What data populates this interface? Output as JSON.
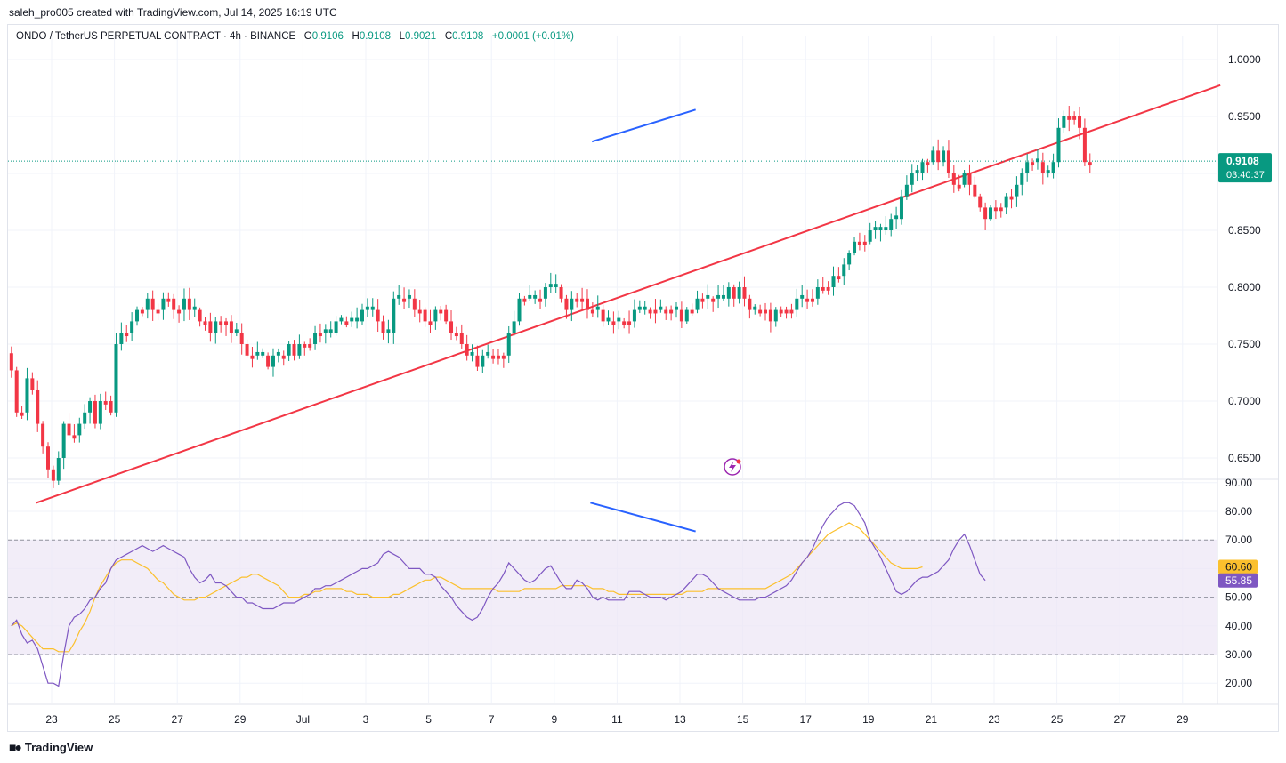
{
  "header": {
    "credit": "saleh_pro005 created with TradingView.com, Jul 14, 2025 16:19 UTC"
  },
  "legend": {
    "symbol": "ONDO / TetherUS PERPETUAL CONTRACT · 4h · BINANCE",
    "o_label": "O",
    "o_value": "0.9106",
    "h_label": "H",
    "h_value": "0.9108",
    "l_label": "L",
    "l_value": "0.9021",
    "c_label": "C",
    "c_value": "0.9108",
    "change": "+0.0001 (+0.01%)"
  },
  "price_tag": {
    "value": "0.9108",
    "countdown": "03:40:37"
  },
  "rsi_tags": {
    "ma": "60.60",
    "rsi": "55.85"
  },
  "branding": {
    "logo_text": "TradingView"
  },
  "colors": {
    "up": "#089981",
    "down": "#f23645",
    "trendline": "#f23645",
    "divergence": "#2962ff",
    "rsi": "#7e57c2",
    "rsi_ma": "#fbc02d",
    "rsi_band": "#ede7f6",
    "ma_tag": "#fbc02d",
    "rsi_tag": "#7e57c2"
  },
  "chart_data": [
    {
      "type": "candlestick",
      "y_axis": {
        "min": 0.62,
        "max": 1.025,
        "ticks": [
          "1.0000",
          "0.9500",
          "0.8500",
          "0.8000",
          "0.7500",
          "0.7000",
          "0.6500"
        ]
      },
      "x_axis": {
        "labels": [
          "23",
          "25",
          "27",
          "29",
          "Jul",
          "3",
          "5",
          "7",
          "9",
          "11",
          "13",
          "15",
          "17",
          "19",
          "21",
          "23",
          "25",
          "27",
          "29"
        ],
        "label_days": [
          23,
          25,
          27,
          29,
          31,
          33,
          35,
          37,
          39,
          41,
          43,
          45,
          47,
          49,
          51,
          53,
          55,
          57,
          59
        ]
      },
      "day_start": 21.72,
      "candles_per_day": 6,
      "closes": [
        0.727,
        0.69,
        0.69,
        0.72,
        0.71,
        0.68,
        0.66,
        0.64,
        0.63,
        0.65,
        0.68,
        0.67,
        0.67,
        0.68,
        0.69,
        0.7,
        0.68,
        0.7,
        0.7,
        0.69,
        0.75,
        0.76,
        0.76,
        0.77,
        0.78,
        0.78,
        0.79,
        0.78,
        0.78,
        0.79,
        0.79,
        0.78,
        0.78,
        0.79,
        0.78,
        0.78,
        0.77,
        0.77,
        0.76,
        0.77,
        0.77,
        0.77,
        0.76,
        0.76,
        0.75,
        0.74,
        0.74,
        0.74,
        0.74,
        0.73,
        0.74,
        0.74,
        0.74,
        0.75,
        0.74,
        0.75,
        0.75,
        0.75,
        0.76,
        0.76,
        0.76,
        0.76,
        0.77,
        0.77,
        0.77,
        0.77,
        0.77,
        0.78,
        0.78,
        0.78,
        0.77,
        0.76,
        0.76,
        0.79,
        0.79,
        0.79,
        0.79,
        0.78,
        0.78,
        0.77,
        0.77,
        0.78,
        0.78,
        0.77,
        0.76,
        0.76,
        0.75,
        0.74,
        0.74,
        0.73,
        0.74,
        0.74,
        0.74,
        0.74,
        0.74,
        0.76,
        0.77,
        0.79,
        0.79,
        0.79,
        0.79,
        0.79,
        0.8,
        0.8,
        0.8,
        0.79,
        0.78,
        0.79,
        0.79,
        0.79,
        0.78,
        0.78,
        0.78,
        0.77,
        0.77,
        0.77,
        0.77,
        0.77,
        0.77,
        0.78,
        0.78,
        0.78,
        0.78,
        0.78,
        0.78,
        0.78,
        0.78,
        0.78,
        0.77,
        0.78,
        0.78,
        0.79,
        0.79,
        0.79,
        0.79,
        0.79,
        0.79,
        0.8,
        0.79,
        0.8,
        0.79,
        0.78,
        0.78,
        0.78,
        0.78,
        0.77,
        0.78,
        0.78,
        0.78,
        0.78,
        0.79,
        0.79,
        0.79,
        0.79,
        0.8,
        0.8,
        0.8,
        0.81,
        0.81,
        0.82,
        0.83,
        0.84,
        0.84,
        0.84,
        0.85,
        0.85,
        0.85,
        0.85,
        0.86,
        0.86,
        0.88,
        0.89,
        0.9,
        0.9,
        0.91,
        0.91,
        0.92,
        0.91,
        0.92,
        0.9,
        0.89,
        0.89,
        0.9,
        0.89,
        0.88,
        0.87,
        0.86,
        0.87,
        0.87,
        0.87,
        0.88,
        0.88,
        0.89,
        0.9,
        0.91,
        0.91,
        0.91,
        0.9,
        0.9,
        0.91,
        0.94,
        0.95,
        0.95,
        0.95,
        0.94,
        0.91,
        0.9108
      ],
      "trendline": {
        "from": {
          "day": 22.5,
          "price": 0.6105
        },
        "to": {
          "day": 60.2,
          "price": 0.9775
        }
      },
      "divergence_line": {
        "from": {
          "day": 40.2,
          "price": 0.928
        },
        "to": {
          "day": 43.5,
          "price": 0.956
        }
      },
      "last_price": 0.9108
    },
    {
      "type": "line",
      "y_axis": {
        "min": 12,
        "max": 93,
        "ticks": [
          "90.00",
          "80.00",
          "70.00",
          "50.00",
          "40.00",
          "30.00",
          "20.00"
        ],
        "band": [
          30,
          70
        ],
        "midline": 50
      },
      "series": [
        {
          "values": [
            40,
            42,
            37,
            34,
            35,
            32,
            26,
            20,
            20,
            19,
            30,
            40,
            43,
            44,
            46,
            49,
            50,
            53,
            55,
            60,
            63,
            64,
            65,
            66,
            67,
            68,
            67,
            66,
            67,
            68,
            67,
            66,
            65,
            64,
            60,
            57,
            55,
            56,
            58,
            55,
            55,
            54,
            52,
            50,
            50,
            48,
            48,
            47,
            46,
            46,
            46,
            47,
            48,
            48,
            48,
            49,
            50,
            51,
            53,
            53,
            54,
            54,
            55,
            56,
            57,
            58,
            59,
            60,
            60,
            61,
            62,
            65,
            66,
            65,
            64,
            62,
            60,
            60,
            60,
            58,
            58,
            57,
            54,
            52,
            50,
            47,
            45,
            43,
            42,
            43,
            46,
            50,
            53,
            55,
            58,
            62,
            60,
            58,
            56,
            55,
            56,
            58,
            60,
            61,
            58,
            55,
            53,
            53,
            56,
            55,
            53,
            50,
            49,
            50,
            49,
            49,
            49,
            49,
            52,
            52,
            52,
            51,
            50,
            50,
            50,
            49,
            50,
            51,
            52,
            54,
            56,
            58,
            58,
            57,
            55,
            53,
            52,
            51,
            50,
            49,
            49,
            49,
            49,
            50,
            50,
            51,
            52,
            53,
            54,
            56,
            59,
            62,
            64,
            67,
            71,
            75,
            78,
            80,
            82,
            83,
            83,
            82,
            79,
            76,
            70,
            67,
            64,
            60,
            56,
            52,
            51,
            52,
            54,
            56,
            57,
            57,
            58,
            59,
            61,
            63,
            67,
            70,
            72,
            68,
            63,
            58,
            55.85
          ]
        },
        {
          "values": [
            40,
            41,
            40,
            38,
            36,
            34,
            32,
            32,
            32,
            31,
            31,
            31,
            34,
            38,
            41,
            45,
            50,
            54,
            57,
            60,
            62,
            63,
            63,
            63,
            62,
            61,
            60,
            58,
            56,
            55,
            53,
            51,
            50,
            49,
            49,
            49,
            50,
            50,
            51,
            52,
            53,
            54,
            55,
            56,
            57,
            57,
            58,
            58,
            57,
            56,
            55,
            54,
            52,
            50,
            50,
            50,
            51,
            51,
            52,
            52,
            53,
            53,
            53,
            53,
            52,
            52,
            51,
            51,
            51,
            50,
            50,
            50,
            50,
            51,
            51,
            52,
            53,
            54,
            55,
            56,
            56,
            57,
            57,
            56,
            55,
            54,
            53,
            53,
            53,
            53,
            53,
            53,
            53,
            52,
            52,
            52,
            52,
            52,
            53,
            53,
            53,
            53,
            53,
            53,
            53,
            54,
            54,
            54,
            54,
            54,
            54,
            53,
            53,
            53,
            52,
            52,
            51,
            51,
            51,
            51,
            51,
            51,
            51,
            51,
            51,
            51,
            51,
            51,
            51,
            52,
            52,
            52,
            52,
            53,
            53,
            53,
            53,
            53,
            53,
            53,
            53,
            53,
            53,
            53,
            53,
            54,
            55,
            56,
            57,
            58,
            60,
            62,
            64,
            66,
            68,
            70,
            72,
            73,
            74,
            75,
            76,
            75,
            74,
            72,
            70,
            68,
            66,
            64,
            62,
            61,
            60,
            60,
            60,
            60,
            60.6
          ]
        }
      ],
      "divergence_line": {
        "from": {
          "day": 40.15,
          "value": 83
        },
        "to": {
          "day": 43.5,
          "value": 73
        }
      },
      "last_rsi": 55.85,
      "last_ma": 60.6
    }
  ]
}
